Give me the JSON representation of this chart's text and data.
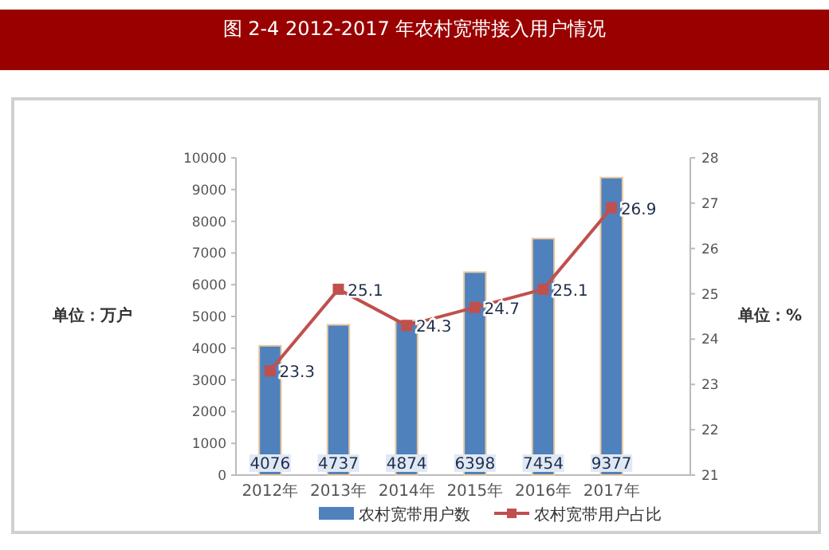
{
  "chart_data": {
    "type": "bar",
    "title": "图 2-4 2012-2017 年农村宽带接入用户情况",
    "ylabel": "单位：万户",
    "y2label": "单位：%",
    "categories": [
      "2012年",
      "2013年",
      "2014年",
      "2015年",
      "2016年",
      "2017年"
    ],
    "series": [
      {
        "name": "农村宽带用户数",
        "color": "#4f81bd",
        "values": [
          4076,
          4737,
          4874,
          6398,
          7454,
          9377
        ]
      },
      {
        "name": "农村宽带用户占比",
        "type": "line",
        "axis": "y2",
        "color": "#c0504d",
        "marker": "square",
        "values": [
          23.3,
          25.1,
          24.3,
          24.7,
          25.1,
          26.9
        ]
      }
    ],
    "ylim": [
      0,
      10000
    ],
    "yticks": [
      0,
      1000,
      2000,
      3000,
      4000,
      5000,
      6000,
      7000,
      8000,
      9000,
      10000
    ],
    "y2lim": [
      21,
      28
    ],
    "y2ticks": [
      21,
      22,
      23,
      24,
      25,
      26,
      27,
      28
    ],
    "data_labels": true,
    "legend": "bottom",
    "grid": false
  }
}
